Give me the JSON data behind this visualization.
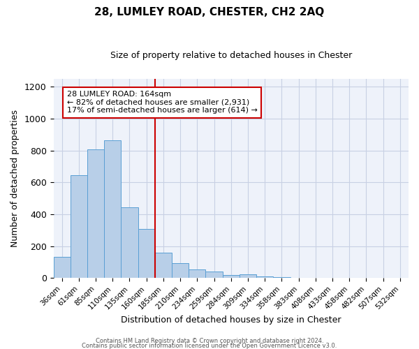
{
  "title": "28, LUMLEY ROAD, CHESTER, CH2 2AQ",
  "subtitle": "Size of property relative to detached houses in Chester",
  "xlabel": "Distribution of detached houses by size in Chester",
  "ylabel": "Number of detached properties",
  "bar_labels": [
    "36sqm",
    "61sqm",
    "85sqm",
    "110sqm",
    "135sqm",
    "160sqm",
    "185sqm",
    "210sqm",
    "234sqm",
    "259sqm",
    "284sqm",
    "309sqm",
    "334sqm",
    "358sqm",
    "383sqm",
    "408sqm",
    "433sqm",
    "458sqm",
    "482sqm",
    "507sqm",
    "532sqm"
  ],
  "bar_heights": [
    135,
    645,
    810,
    865,
    445,
    310,
    160,
    95,
    55,
    42,
    20,
    22,
    10,
    5,
    2,
    1,
    0,
    1,
    0,
    0,
    3
  ],
  "bar_color": "#b8cfe8",
  "bar_edge_color": "#5a9fd4",
  "vline_position": 5.5,
  "vline_color": "#cc0000",
  "annotation_text_line1": "28 LUMLEY ROAD: 164sqm",
  "annotation_text_line2": "← 82% of detached houses are smaller (2,931)",
  "annotation_text_line3": "17% of semi-detached houses are larger (614) →",
  "ylim": [
    0,
    1250
  ],
  "yticks": [
    0,
    200,
    400,
    600,
    800,
    1000,
    1200
  ],
  "background_color": "#eef2fa",
  "grid_color": "#c8d0e4",
  "footer_line1": "Contains HM Land Registry data © Crown copyright and database right 2024.",
  "footer_line2": "Contains public sector information licensed under the Open Government Licence v3.0."
}
